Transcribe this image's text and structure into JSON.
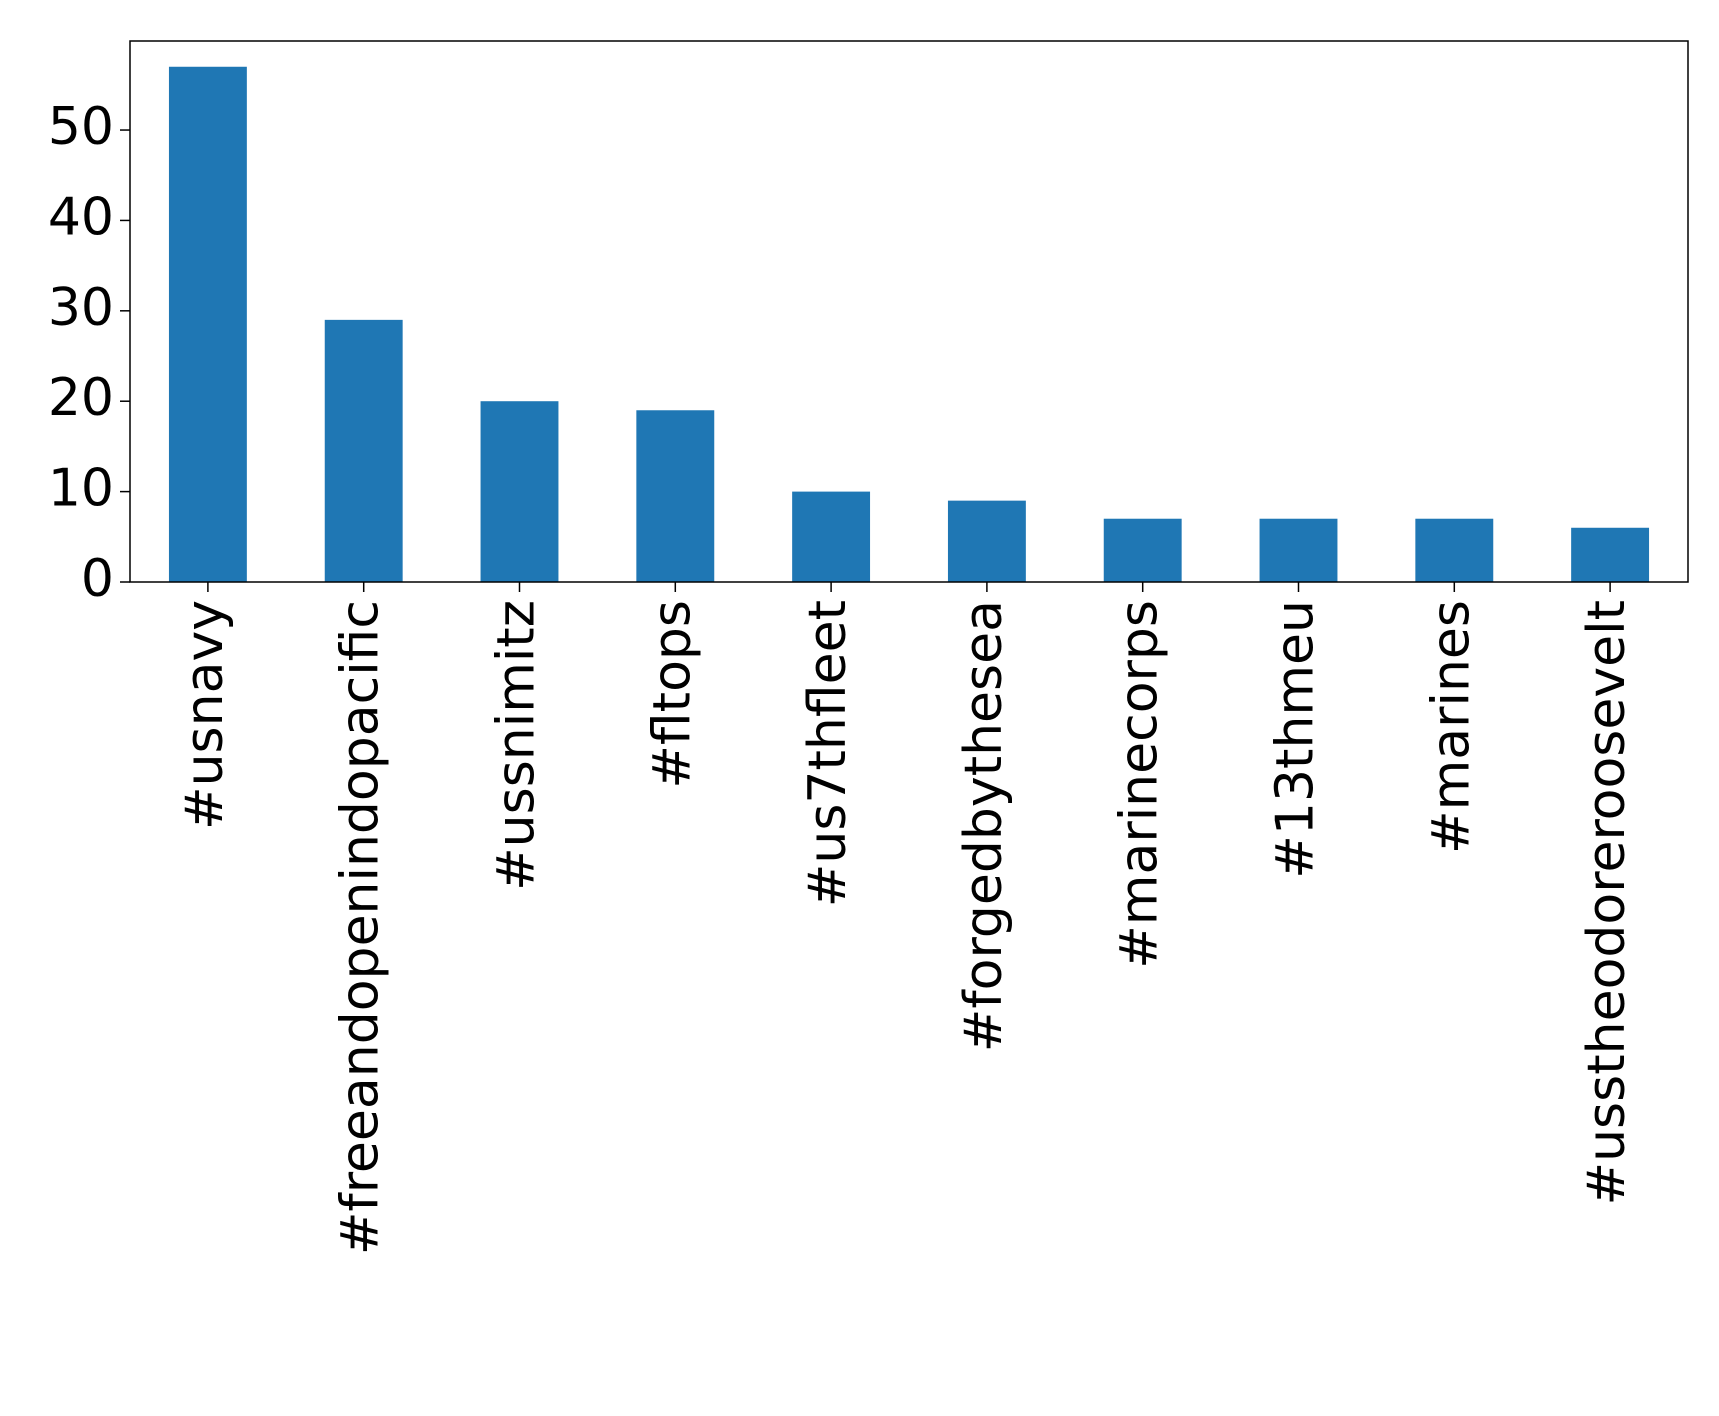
{
  "chart_data": {
    "type": "bar",
    "categories": [
      "#usnavy",
      "#freeandopenindopacific",
      "#ussnimitz",
      "#fltops",
      "#us7thfleet",
      "#forgedbythesea",
      "#marinecorps",
      "#13thmeu",
      "#marines",
      "#usstheodoreroosevelt"
    ],
    "values": [
      57,
      29,
      20,
      19,
      10,
      9,
      7,
      7,
      7,
      6
    ],
    "color": "#1f77b4",
    "ylim": [
      0,
      59.85
    ],
    "yticks": [
      0,
      10,
      20,
      30,
      40,
      50
    ],
    "grid": false
  }
}
